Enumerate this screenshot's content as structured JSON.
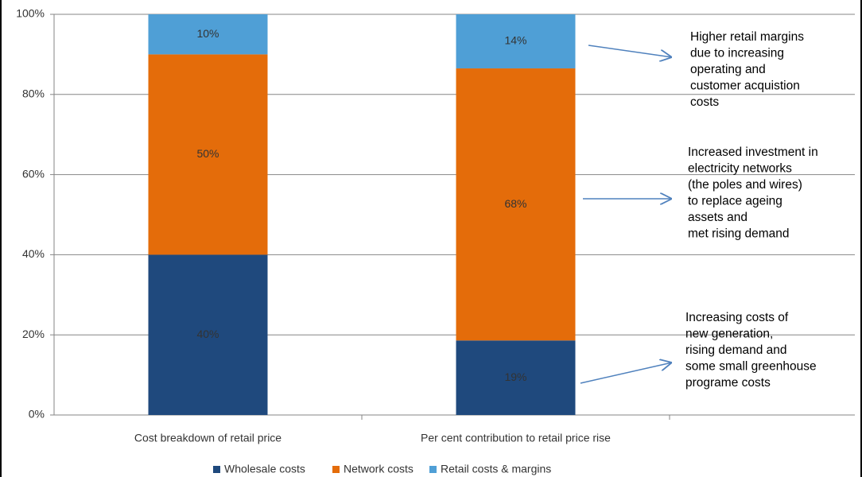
{
  "chart_data": {
    "type": "stacked_bar",
    "categories": [
      "Cost breakdown of retail price",
      "Per cent contribution to retail price rise"
    ],
    "series": [
      {
        "name": "Wholesale costs",
        "color": "#1f497d",
        "values": [
          40,
          18.6
        ],
        "value_labels": [
          "40%",
          "19%"
        ]
      },
      {
        "name": "Network costs",
        "color": "#e46c0a",
        "values": [
          50,
          67.9
        ],
        "value_labels": [
          "50%",
          "68%"
        ]
      },
      {
        "name": "Retail costs & margins",
        "color": "#4f9fd6",
        "values": [
          10,
          13.5
        ],
        "value_labels": [
          "10%",
          "14%"
        ]
      }
    ],
    "ylim": [
      0,
      100
    ],
    "yticks": [
      {
        "value": 0,
        "label": "0%"
      },
      {
        "value": 20,
        "label": "20%"
      },
      {
        "value": 40,
        "label": "40%"
      },
      {
        "value": 60,
        "label": "60%"
      },
      {
        "value": 80,
        "label": "80%"
      },
      {
        "value": 100,
        "label": "100%"
      }
    ],
    "grid": true,
    "legend": "bottom",
    "annotations": [
      {
        "lines": [
          "Higher retail margins",
          "due to increasing",
          "operating and",
          "customer acquistion",
          "costs"
        ]
      },
      {
        "lines": [
          "Increased investment in",
          "electricity networks",
          "(the poles and wires)",
          "to replace ageing",
          "assets and",
          " met rising demand"
        ]
      },
      {
        "lines": [
          "Increasing costs of",
          "new generation,",
          "rising demand and",
          "some small greenhouse",
          "programe costs"
        ]
      }
    ]
  }
}
